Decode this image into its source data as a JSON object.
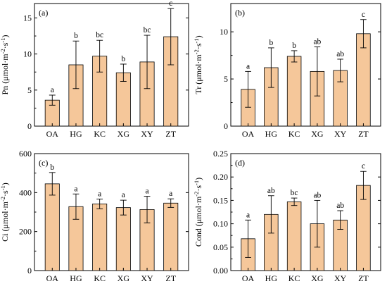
{
  "chart_data": [
    {
      "type": "bar",
      "panel_label": "(a)",
      "ylabel": "Pn (μmol·m⁻²·s⁻¹)",
      "categories": [
        "OA",
        "HG",
        "KC",
        "XG",
        "XY",
        "ZT"
      ],
      "values": [
        3.6,
        8.5,
        9.7,
        7.4,
        8.9,
        12.4
      ],
      "errors": [
        0.7,
        3.3,
        2.2,
        1.2,
        3.7,
        3.9
      ],
      "significance": [
        "a",
        "b",
        "bc",
        "b",
        "bc",
        "c"
      ],
      "ylim": [
        0,
        17
      ],
      "yticks": [
        0,
        5,
        10,
        15
      ],
      "ytick_labels": [
        "0",
        "5",
        "10",
        "15"
      ],
      "bar_color": "#f5c79a"
    },
    {
      "type": "bar",
      "panel_label": "(b)",
      "ylabel": "Tr (μmol·m⁻²·s⁻¹)",
      "categories": [
        "OA",
        "HG",
        "KC",
        "XG",
        "XY",
        "ZT"
      ],
      "values": [
        3.9,
        6.2,
        7.4,
        5.8,
        5.9,
        9.8
      ],
      "errors": [
        1.9,
        2.1,
        0.6,
        2.6,
        1.2,
        1.5
      ],
      "significance": [
        "a",
        "b",
        "b",
        "ab",
        "ab",
        "c"
      ],
      "ylim": [
        0,
        13
      ],
      "yticks": [
        0,
        5,
        10
      ],
      "ytick_labels": [
        "0",
        "5",
        "10"
      ],
      "bar_color": "#f5c79a"
    },
    {
      "type": "bar",
      "panel_label": "(c)",
      "ylabel": "Ci (μmol·m⁻²·s⁻¹)",
      "categories": [
        "OA",
        "HG",
        "KC",
        "XG",
        "XY",
        "ZT"
      ],
      "values": [
        445,
        328,
        342,
        323,
        313,
        346
      ],
      "errors": [
        58,
        65,
        25,
        38,
        68,
        22
      ],
      "significance": [
        "b",
        "a",
        "a",
        "a",
        "a",
        "a"
      ],
      "ylim": [
        0,
        600
      ],
      "yticks": [
        0,
        200,
        400,
        600
      ],
      "ytick_labels": [
        "0",
        "200",
        "400",
        "600"
      ],
      "bar_color": "#f5c79a"
    },
    {
      "type": "bar",
      "panel_label": "(d)",
      "ylabel": "Cond (μmol·m⁻²·s⁻¹)",
      "categories": [
        "OA",
        "HG",
        "KC",
        "XG",
        "XY",
        "ZT"
      ],
      "values": [
        0.068,
        0.12,
        0.147,
        0.1,
        0.108,
        0.182
      ],
      "errors": [
        0.04,
        0.04,
        0.008,
        0.05,
        0.02,
        0.03
      ],
      "significance": [
        "a",
        "ab",
        "bc",
        "ab",
        "ab",
        "c"
      ],
      "ylim": [
        0,
        0.25
      ],
      "yticks": [
        0,
        0.05,
        0.1,
        0.15,
        0.2,
        0.25
      ],
      "ytick_labels": [
        "0.00",
        "0.05",
        "0.10",
        "0.15",
        "0.20",
        "0.25"
      ],
      "bar_color": "#f5c79a"
    }
  ]
}
